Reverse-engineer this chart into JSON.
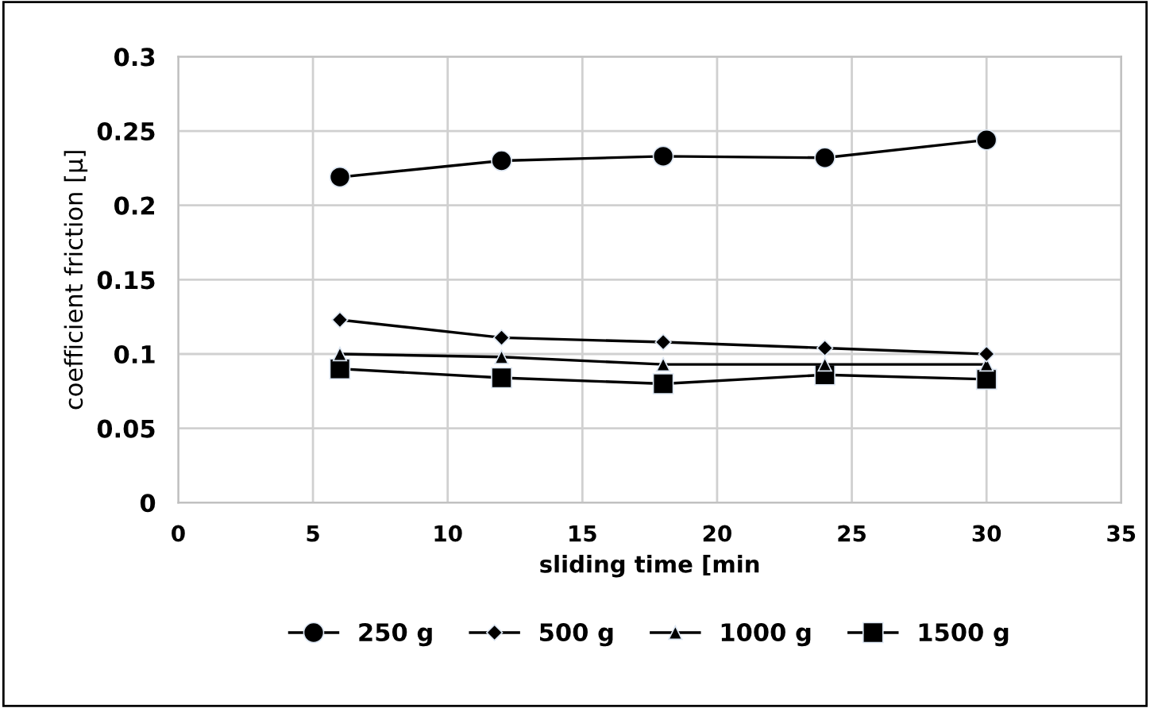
{
  "chart_data": {
    "type": "line",
    "xlabel": "sliding time [min",
    "ylabel": "coefficient friction [µ]",
    "x": [
      6,
      12,
      18,
      24,
      30
    ],
    "xlim": [
      0,
      35
    ],
    "xticks": [
      0,
      5,
      10,
      15,
      20,
      25,
      30,
      35
    ],
    "ylim": [
      0,
      0.3
    ],
    "yticks": [
      0,
      0.05,
      0.1,
      0.15,
      0.2,
      0.25,
      0.3
    ],
    "grid": true,
    "legend": "bottom",
    "series": [
      {
        "name": "250 g",
        "color": "#000000",
        "marker": "circle",
        "values": [
          0.219,
          0.23,
          0.233,
          0.232,
          0.244
        ]
      },
      {
        "name": "500 g",
        "color": "#000000",
        "marker": "diamond",
        "values": [
          0.123,
          0.111,
          0.108,
          0.104,
          0.1
        ]
      },
      {
        "name": "1000 g",
        "color": "#000000",
        "marker": "triangle",
        "values": [
          0.1,
          0.098,
          0.093,
          0.093,
          0.093
        ]
      },
      {
        "name": "1500 g",
        "color": "#000000",
        "marker": "square",
        "values": [
          0.09,
          0.084,
          0.08,
          0.086,
          0.083
        ]
      }
    ]
  }
}
